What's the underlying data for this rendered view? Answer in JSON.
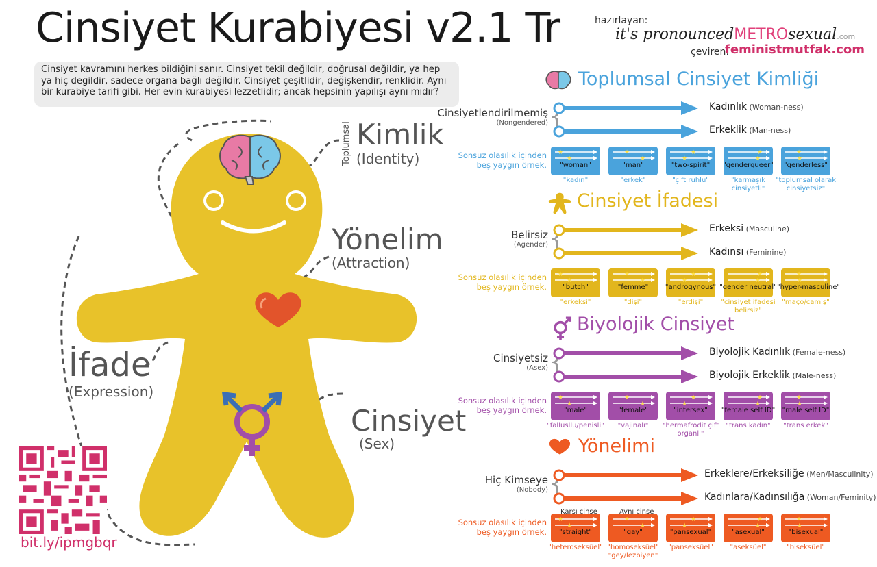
{
  "header": {
    "title": "Cinsiyet Kurabiyesi v2.1 Tr",
    "hazirlayan": "hazırlayan:",
    "its_pronounced": "it's pronounced",
    "metro": "METRO",
    "sexual": "sexual",
    "dotcom": ".com",
    "ceviren": "çeviren:",
    "translator": "feministmutfak.com"
  },
  "intro": "Cinsiyet kavramını herkes bildiğini sanır. Cinsiyet tekil değildir, doğrusal değildir, ya hep ya hiç değildir,  sadece organa bağlı değildir. Cinsiyet çeşitlidir, değişkendir, renklidir. Aynı bir kurabiye tarifi gibi. Her evin kurabiyesi lezzetlidir; ancak hepsinin yapılışı aynı mıdır?",
  "cookie": {
    "identity_side": "Toplumsal",
    "identity_tr": "Kimlik",
    "identity_en": "(Identity)",
    "attraction_tr": "Yönelim",
    "attraction_en": "(Attraction)",
    "expression_tr": "İfade",
    "expression_en": "(Expression)",
    "sex_tr": "Cinsiyet",
    "sex_en": "(Sex)"
  },
  "qr_link": "bit.ly/ipmgbqr",
  "colors": {
    "cookie": "#e8c22a",
    "identity": "#4aa3dc",
    "expression": "#e2b61d",
    "sex": "#a24ea8",
    "attraction": "#ee5a22"
  },
  "sections": [
    {
      "key": "identity",
      "icon": "brain-icon",
      "title": "Toplumsal Cinsiyet Kimliği",
      "left_label": "Cinsiyetlendirilmemiş",
      "left_paren": "(Nongendered)",
      "axis1": "Kadınlık",
      "axis1_en": "(Woman-ness)",
      "axis2": "Erkeklik",
      "axis2_en": "(Man-ness)",
      "examples_intro_1": "Sonsuz olasılık içinden",
      "examples_intro_2": "beş yaygın örnek.",
      "examples": [
        {
          "label": "\"woman\"",
          "tr": "\"kadın\""
        },
        {
          "label": "\"man\"",
          "tr": "\"erkek\""
        },
        {
          "label": "\"two-spirit\"",
          "tr": "\"çift ruhlu\""
        },
        {
          "label": "\"genderqueer\"",
          "tr": "\"karmaşık cinsiyetli\""
        },
        {
          "label": "\"genderless\"",
          "tr": "\"toplumsal olarak cinsiyetsiz\""
        }
      ]
    },
    {
      "key": "expression",
      "icon": "cookie-person-icon",
      "title": "Cinsiyet İfadesi",
      "left_label": "Belirsiz",
      "left_paren": "(Agender)",
      "axis1": "Erkeksi",
      "axis1_en": "(Masculine)",
      "axis2": "Kadınsı",
      "axis2_en": "(Feminine)",
      "examples_intro_1": "Sonsuz olasılık içinden",
      "examples_intro_2": "beş yaygın örnek.",
      "examples": [
        {
          "label": "\"butch\"",
          "tr": "\"erkeksi\""
        },
        {
          "label": "\"femme\"",
          "tr": "\"dişi\""
        },
        {
          "label": "\"androgynous\"",
          "tr": "\"erdişi\""
        },
        {
          "label": "\"gender neutral\"",
          "tr": "\"cinsiyet ifadesi belirsiz\""
        },
        {
          "label": "\"hyper-masculine\"",
          "tr": "\"maço/camış\""
        }
      ]
    },
    {
      "key": "sex",
      "icon": "gender-symbol-icon",
      "title": "Biyolojik Cinsiyet",
      "left_label": "Cinsiyetsiz",
      "left_paren": "(Asex)",
      "axis1": "Biyolojik Kadınlık",
      "axis1_en": "(Female-ness)",
      "axis2": "Biyolojik Erkeklik",
      "axis2_en": "(Male-ness)",
      "examples_intro_1": "Sonsuz olasılık içinden",
      "examples_intro_2": "beş yaygın örnek.",
      "examples": [
        {
          "label": "\"male\"",
          "tr": "\"fallusllu/penisli\""
        },
        {
          "label": "\"female\"",
          "tr": "\"vajinalı\""
        },
        {
          "label": "\"intersex\"",
          "tr": "\"hermafrodit çift organlı\""
        },
        {
          "label": "\"female self ID\"",
          "tr": "\"trans kadın\""
        },
        {
          "label": "\"male self ID\"",
          "tr": "\"trans erkek\""
        }
      ]
    },
    {
      "key": "attraction",
      "icon": "heart-icon",
      "title": "Yönelimi",
      "left_label": "Hiç Kimseye",
      "left_paren": "(Nobody)",
      "axis1": "Erkeklere/Erkeksiliğe",
      "axis1_en": "(Men/Masculinity)",
      "axis2": "Kadınlara/Kadınsılığa",
      "axis2_en": "(Woman/Feminity)",
      "examples_intro_1": "Sonsuz olasılık içinden",
      "examples_intro_2": "beş yaygın örnek.",
      "above": [
        "Karşı cinse",
        "Aynı cinse"
      ],
      "examples": [
        {
          "label": "\"straight\"",
          "tr": "\"heteroseksüel\""
        },
        {
          "label": "\"gay\"",
          "tr": "\"homoseksüel\" \"gey/lezbiyen\""
        },
        {
          "label": "\"pansexual\"",
          "tr": "\"panseksüel\""
        },
        {
          "label": "\"asexual\"",
          "tr": "\"aseksüel\""
        },
        {
          "label": "\"bisexual\"",
          "tr": "\"biseksüel\""
        }
      ]
    }
  ]
}
